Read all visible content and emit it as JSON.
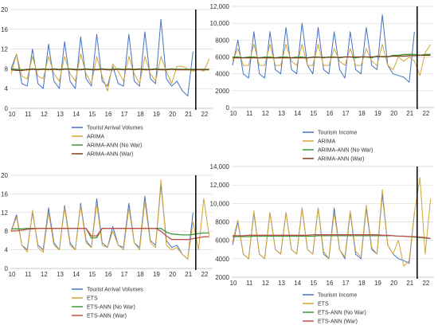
{
  "charts": [
    {
      "type": "line",
      "ylim": [
        0,
        20
      ],
      "y_ticks": [
        "0",
        "4",
        "8",
        "12",
        "16",
        "20"
      ],
      "x_ticks": [
        "10",
        "11",
        "12",
        "13",
        "14",
        "15",
        "16",
        "17",
        "18",
        "19",
        "20",
        "21",
        "22"
      ],
      "war_line_x": 21.5,
      "grid": "horizontal",
      "legend_position": "bottom",
      "legend": [
        "Tourist Arrival Volumes",
        "ARIMA",
        "ARIMA-ANN (No War)",
        "ARIMA-ANN (War)"
      ],
      "colors": [
        "#4472c4",
        "#d4a437",
        "#3c9a3c",
        "#7b3f1e"
      ]
    },
    {
      "type": "line",
      "ylim": [
        0,
        12000
      ],
      "y_ticks": [
        "0",
        "2000",
        "4000",
        "6000",
        "8000",
        "10,000",
        "12,000"
      ],
      "x_ticks": [
        "10",
        "11",
        "12",
        "13",
        "14",
        "15",
        "16",
        "17",
        "18",
        "19",
        "20",
        "21",
        "22"
      ],
      "war_line_x": 21.5,
      "grid": "horizontal",
      "legend_position": "bottom",
      "legend": [
        "Tourism Income",
        "ARIMA",
        "ARIMA-ANN (No War)",
        "ARIMA-ANN (War)"
      ],
      "colors": [
        "#4472c4",
        "#d4a437",
        "#3c9a3c",
        "#7b3f1e"
      ]
    },
    {
      "type": "line",
      "ylim": [
        0,
        20
      ],
      "y_ticks": [
        "0",
        "4",
        "8",
        "12",
        "16",
        "20"
      ],
      "x_ticks": [
        "10",
        "11",
        "12",
        "13",
        "14",
        "15",
        "16",
        "17",
        "18",
        "19",
        "20",
        "21",
        "22"
      ],
      "war_line_x": 21.5,
      "grid": "horizontal",
      "legend_position": "bottom",
      "legend": [
        "Tourist Arrival Volumes",
        "ETS",
        "ETS-ANN (No War)",
        "ETS-ANN (War)"
      ],
      "colors": [
        "#4472c4",
        "#d4a437",
        "#3c9a3c",
        "#c0504d"
      ]
    },
    {
      "type": "line",
      "ylim": [
        2000,
        14000
      ],
      "y_ticks": [
        "2000",
        "4000",
        "6000",
        "8000",
        "10,000",
        "12,000",
        "14,000"
      ],
      "x_ticks": [
        "10",
        "11",
        "12",
        "13",
        "14",
        "15",
        "16",
        "17",
        "18",
        "19",
        "20",
        "21",
        "22"
      ],
      "war_line_x": 21.5,
      "grid": "horizontal",
      "legend_position": "bottom",
      "legend": [
        "Tourism Income",
        "ETS",
        "ETS-ANN (No War)",
        "ETS-ANN (War)"
      ],
      "colors": [
        "#4472c4",
        "#d4a437",
        "#3c9a3c",
        "#c0504d"
      ]
    }
  ],
  "chart_data": [
    {
      "type": "line",
      "x": [
        10.0,
        10.33,
        10.67,
        11.0,
        11.33,
        11.67,
        12.0,
        12.33,
        12.67,
        13.0,
        13.33,
        13.67,
        14.0,
        14.33,
        14.67,
        15.0,
        15.33,
        15.67,
        16.0,
        16.33,
        16.67,
        17.0,
        17.33,
        17.67,
        18.0,
        18.33,
        18.67,
        19.0,
        19.33,
        19.67,
        20.0,
        20.33,
        20.67,
        21.0,
        21.33,
        21.67,
        22.0,
        22.33
      ],
      "series": [
        {
          "name": "Tourist Arrival Volumes",
          "values": [
            8.0,
            11.0,
            5.0,
            4.5,
            12.0,
            5.0,
            4.0,
            13.0,
            5.5,
            4.0,
            13.5,
            5.5,
            4.0,
            14.5,
            6.0,
            4.5,
            15.0,
            5.5,
            4.5,
            8.5,
            5.0,
            4.5,
            15.0,
            5.5,
            4.5,
            15.5,
            6.0,
            5.0,
            18.0,
            6.0,
            4.5,
            5.5,
            3.5,
            2.5,
            11.5,
            null,
            null,
            null
          ]
        },
        {
          "name": "ARIMA",
          "values": [
            7.0,
            11.0,
            6.5,
            6.0,
            10.5,
            6.5,
            6.0,
            10.5,
            7.0,
            5.5,
            10.5,
            7.0,
            5.5,
            11.0,
            7.0,
            5.0,
            10.5,
            6.5,
            3.5,
            9.0,
            7.5,
            5.5,
            10.5,
            7.0,
            5.0,
            10.5,
            7.0,
            5.5,
            10.5,
            7.5,
            5.0,
            8.5,
            8.5,
            8.0,
            7.5,
            8.0,
            7.5,
            10.0
          ]
        },
        {
          "name": "ARIMA-ANN (No War)",
          "values": [
            8.0,
            7.9,
            7.8,
            7.9,
            8.0,
            7.9,
            8.0,
            7.9,
            8.0,
            7.9,
            8.0,
            8.0,
            7.9,
            7.9,
            8.0,
            7.9,
            7.9,
            8.0,
            7.9,
            7.9,
            8.0,
            7.9,
            8.0,
            7.9,
            8.0,
            7.9,
            7.9,
            8.0,
            7.9,
            7.9,
            8.0,
            7.9,
            7.9,
            7.9,
            7.9,
            7.9,
            7.9,
            7.9
          ]
        },
        {
          "name": "ARIMA-ANN (War)",
          "values": [
            7.8,
            7.7,
            7.7,
            7.8,
            7.9,
            7.8,
            7.9,
            7.8,
            7.9,
            7.8,
            7.9,
            7.9,
            7.8,
            7.8,
            7.9,
            7.8,
            7.8,
            7.9,
            7.8,
            7.8,
            7.9,
            7.8,
            7.9,
            7.8,
            7.9,
            7.8,
            7.8,
            7.9,
            7.8,
            7.8,
            7.9,
            7.8,
            7.8,
            7.8,
            7.8,
            7.8,
            7.8,
            7.8
          ]
        }
      ]
    },
    {
      "type": "line",
      "x": [
        10.0,
        10.33,
        10.67,
        11.0,
        11.33,
        11.67,
        12.0,
        12.33,
        12.67,
        13.0,
        13.33,
        13.67,
        14.0,
        14.33,
        14.67,
        15.0,
        15.33,
        15.67,
        16.0,
        16.33,
        16.67,
        17.0,
        17.33,
        17.67,
        18.0,
        18.33,
        18.67,
        19.0,
        19.33,
        19.67,
        20.0,
        20.33,
        20.67,
        21.0,
        21.33,
        21.67,
        22.0,
        22.33
      ],
      "series": [
        {
          "name": "Tourism Income",
          "values": [
            5000,
            8000,
            4000,
            3500,
            9000,
            4000,
            3500,
            9000,
            4500,
            4000,
            9500,
            4500,
            4000,
            10000,
            5000,
            4000,
            9500,
            4500,
            4000,
            9000,
            4500,
            3500,
            9000,
            4500,
            4000,
            9500,
            5000,
            4500,
            11000,
            5000,
            4000,
            3800,
            3600,
            3000,
            9000,
            null,
            null,
            null
          ]
        },
        {
          "name": "ARIMA",
          "values": [
            5500,
            7000,
            5000,
            5000,
            7500,
            5000,
            5000,
            7500,
            5000,
            5000,
            7500,
            5500,
            5000,
            7500,
            5000,
            5000,
            7500,
            5000,
            5000,
            7000,
            5500,
            5000,
            7000,
            5000,
            5000,
            7000,
            5500,
            5000,
            7500,
            5000,
            4500,
            6000,
            5500,
            6000,
            5500,
            3800,
            6500,
            7500
          ]
        },
        {
          "name": "ARIMA-ANN (No War)",
          "values": [
            6000,
            6000,
            5900,
            6000,
            6000,
            5900,
            6000,
            6000,
            5900,
            6000,
            6000,
            5900,
            6000,
            6000,
            5900,
            6000,
            6000,
            5900,
            6000,
            6000,
            5900,
            6000,
            6000,
            5900,
            6000,
            6000,
            5900,
            6100,
            6000,
            6000,
            6200,
            6200,
            6300,
            6300,
            6300,
            6200,
            6300,
            6300
          ]
        },
        {
          "name": "ARIMA-ANN (War)",
          "values": [
            5900,
            5900,
            5900,
            5900,
            5900,
            5900,
            5900,
            5900,
            5900,
            5900,
            5900,
            5900,
            5900,
            5900,
            5900,
            5950,
            5950,
            5950,
            5950,
            5950,
            5950,
            6000,
            6000,
            6000,
            6000,
            6000,
            6000,
            6050,
            6050,
            6050,
            6100,
            6100,
            6100,
            6150,
            6150,
            6200,
            6200,
            6200
          ]
        }
      ]
    },
    {
      "type": "line",
      "x": [
        10.0,
        10.33,
        10.67,
        11.0,
        11.33,
        11.67,
        12.0,
        12.33,
        12.67,
        13.0,
        13.33,
        13.67,
        14.0,
        14.33,
        14.67,
        15.0,
        15.33,
        15.67,
        16.0,
        16.33,
        16.67,
        17.0,
        17.33,
        17.67,
        18.0,
        18.33,
        18.67,
        19.0,
        19.33,
        19.67,
        20.0,
        20.33,
        20.67,
        21.0,
        21.33,
        21.67,
        22.0,
        22.33
      ],
      "series": [
        {
          "name": "Tourist Arrival Volumes",
          "values": [
            8.0,
            11.5,
            5.0,
            4.0,
            12.0,
            5.0,
            4.0,
            13.0,
            5.5,
            4.0,
            13.5,
            5.5,
            4.0,
            14.0,
            6.0,
            4.5,
            15.0,
            5.5,
            4.5,
            9.0,
            5.0,
            4.5,
            14.0,
            5.5,
            4.5,
            15.5,
            6.0,
            5.0,
            18.0,
            6.0,
            4.5,
            5.0,
            3.0,
            2.0,
            12.0,
            null,
            null,
            null
          ]
        },
        {
          "name": "ETS",
          "values": [
            8.0,
            11.0,
            5.0,
            3.5,
            12.5,
            4.5,
            3.5,
            12.0,
            5.0,
            4.0,
            13.0,
            5.0,
            4.0,
            13.5,
            5.5,
            4.5,
            14.0,
            5.0,
            4.5,
            8.0,
            5.0,
            4.0,
            13.0,
            5.5,
            4.0,
            14.5,
            5.5,
            4.5,
            19.0,
            5.0,
            4.0,
            4.5,
            3.0,
            2.0,
            10.0,
            4.0,
            15.0,
            7.0
          ]
        },
        {
          "name": "ETS-ANN (No War)",
          "values": [
            8.5,
            8.5,
            8.5,
            8.6,
            8.6,
            8.6,
            8.6,
            8.6,
            8.6,
            8.6,
            8.6,
            8.6,
            8.6,
            8.6,
            8.6,
            6.5,
            6.6,
            8.6,
            8.6,
            8.6,
            8.6,
            8.6,
            8.6,
            8.6,
            8.6,
            8.6,
            8.6,
            8.6,
            8.6,
            7.8,
            7.4,
            7.3,
            7.2,
            7.2,
            7.3,
            7.5,
            7.6,
            7.6
          ]
        },
        {
          "name": "ETS-ANN (War)",
          "values": [
            8.0,
            8.1,
            8.2,
            8.4,
            8.5,
            8.6,
            8.6,
            8.6,
            8.6,
            8.6,
            8.6,
            8.6,
            8.6,
            8.6,
            8.6,
            7.0,
            7.0,
            8.6,
            8.6,
            8.6,
            8.6,
            8.6,
            8.6,
            8.6,
            8.6,
            8.6,
            8.6,
            8.6,
            8.0,
            7.0,
            6.2,
            6.2,
            6.2,
            6.2,
            6.4,
            6.6,
            6.8,
            6.8
          ]
        }
      ]
    },
    {
      "type": "line",
      "x": [
        10.0,
        10.33,
        10.67,
        11.0,
        11.33,
        11.67,
        12.0,
        12.33,
        12.67,
        13.0,
        13.33,
        13.67,
        14.0,
        14.33,
        14.67,
        15.0,
        15.33,
        15.67,
        16.0,
        16.33,
        16.67,
        17.0,
        17.33,
        17.67,
        18.0,
        18.33,
        18.67,
        19.0,
        19.33,
        19.67,
        20.0,
        20.33,
        20.67,
        21.0,
        21.33,
        21.67,
        22.0,
        22.33
      ],
      "series": [
        {
          "name": "Tourism Income",
          "values": [
            5500,
            8000,
            4500,
            4000,
            9000,
            4500,
            4000,
            9000,
            5000,
            4500,
            9000,
            5000,
            4500,
            9500,
            5000,
            4500,
            9500,
            4500,
            4000,
            9500,
            5000,
            4000,
            9000,
            4500,
            4000,
            9500,
            5000,
            4500,
            11000,
            5500,
            4500,
            4000,
            3800,
            3500,
            9000,
            null,
            null,
            null
          ]
        },
        {
          "name": "ETS",
          "values": [
            5800,
            8200,
            4500,
            4000,
            9200,
            4500,
            4000,
            9000,
            5000,
            4500,
            9000,
            5000,
            4500,
            9500,
            5000,
            4500,
            9500,
            4800,
            4000,
            9000,
            5000,
            4200,
            9200,
            4800,
            4200,
            9800,
            5200,
            4500,
            11500,
            5500,
            4500,
            6000,
            3200,
            3800,
            9000,
            12800,
            4500,
            10500
          ]
        },
        {
          "name": "ETS-ANN (No War)",
          "values": [
            6400,
            6400,
            6400,
            6400,
            6450,
            6450,
            6450,
            6450,
            6450,
            6450,
            6450,
            6450,
            6450,
            6450,
            6450,
            6450,
            6500,
            6500,
            6500,
            6500,
            6500,
            6500,
            6500,
            6500,
            6500,
            6500,
            6500,
            6500,
            6500,
            6500,
            6500,
            6450,
            6450,
            6400,
            6350,
            6300,
            6250,
            6200
          ]
        },
        {
          "name": "ETS-ANN (War)",
          "values": [
            6500,
            6500,
            6500,
            6550,
            6550,
            6550,
            6550,
            6550,
            6550,
            6550,
            6550,
            6550,
            6550,
            6550,
            6550,
            6600,
            6600,
            6600,
            6600,
            6600,
            6600,
            6600,
            6600,
            6600,
            6600,
            6600,
            6600,
            6600,
            6550,
            6550,
            6500,
            6450,
            6450,
            6400,
            6400,
            6350,
            6300,
            6200
          ]
        }
      ]
    }
  ]
}
